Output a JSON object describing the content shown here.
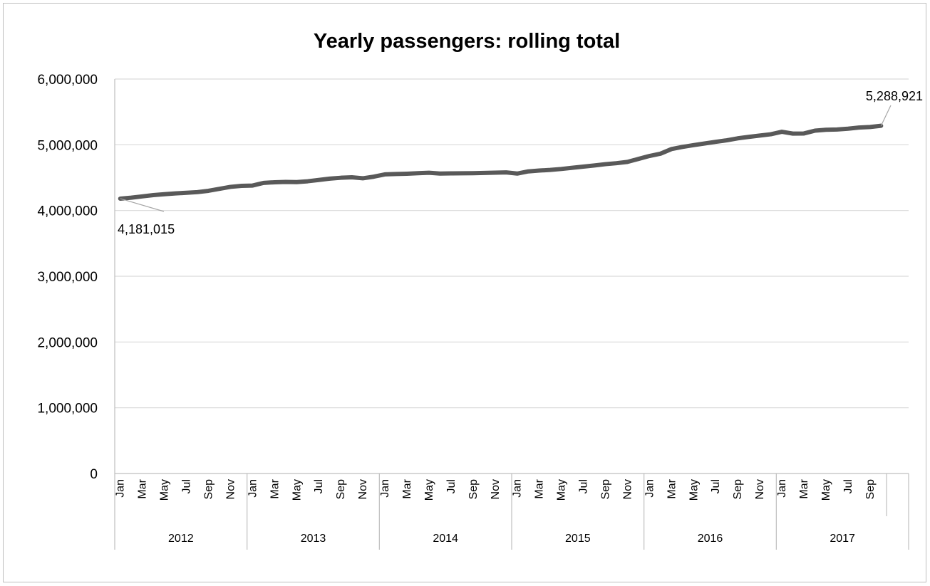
{
  "chart_data": {
    "type": "line",
    "title": "Yearly passengers: rolling total",
    "xlabel": "",
    "ylabel": "",
    "ylim": [
      0,
      6000000
    ],
    "yticks": [
      0,
      1000000,
      2000000,
      3000000,
      4000000,
      5000000,
      6000000
    ],
    "ytick_labels": [
      "0",
      "1,000,000",
      "2,000,000",
      "3,000,000",
      "4,000,000",
      "5,000,000",
      "6,000,000"
    ],
    "grid": true,
    "legend": "none",
    "line_color": "#595959",
    "month_labels_shown": [
      "Jan",
      "Mar",
      "May",
      "Jul",
      "Sep",
      "Nov"
    ],
    "years": [
      "2012",
      "2013",
      "2014",
      "2015",
      "2016",
      "2017"
    ],
    "x": [
      "2012-Jan",
      "2012-Feb",
      "2012-Mar",
      "2012-Apr",
      "2012-May",
      "2012-Jun",
      "2012-Jul",
      "2012-Aug",
      "2012-Sep",
      "2012-Oct",
      "2012-Nov",
      "2012-Dec",
      "2013-Jan",
      "2013-Feb",
      "2013-Mar",
      "2013-Apr",
      "2013-May",
      "2013-Jun",
      "2013-Jul",
      "2013-Aug",
      "2013-Sep",
      "2013-Oct",
      "2013-Nov",
      "2013-Dec",
      "2014-Jan",
      "2014-Feb",
      "2014-Mar",
      "2014-Apr",
      "2014-May",
      "2014-Jun",
      "2014-Jul",
      "2014-Aug",
      "2014-Sep",
      "2014-Oct",
      "2014-Nov",
      "2014-Dec",
      "2015-Jan",
      "2015-Feb",
      "2015-Mar",
      "2015-Apr",
      "2015-May",
      "2015-Jun",
      "2015-Jul",
      "2015-Aug",
      "2015-Sep",
      "2015-Oct",
      "2015-Nov",
      "2015-Dec",
      "2016-Jan",
      "2016-Feb",
      "2016-Mar",
      "2016-Apr",
      "2016-May",
      "2016-Jun",
      "2016-Jul",
      "2016-Aug",
      "2016-Sep",
      "2016-Oct",
      "2016-Nov",
      "2016-Dec",
      "2017-Jan",
      "2017-Feb",
      "2017-Mar",
      "2017-Apr",
      "2017-May",
      "2017-Jun",
      "2017-Jul",
      "2017-Aug",
      "2017-Sep",
      "2017-Oct"
    ],
    "series": [
      {
        "values": [
          4181015,
          4195000,
          4215000,
          4235000,
          4248000,
          4260000,
          4270000,
          4280000,
          4300000,
          4330000,
          4360000,
          4375000,
          4380000,
          4420000,
          4430000,
          4435000,
          4432000,
          4445000,
          4465000,
          4485000,
          4498000,
          4505000,
          4490000,
          4515000,
          4550000,
          4555000,
          4560000,
          4568000,
          4575000,
          4562000,
          4565000,
          4566000,
          4568000,
          4572000,
          4576000,
          4580000,
          4562000,
          4595000,
          4608000,
          4618000,
          4632000,
          4650000,
          4668000,
          4685000,
          4705000,
          4720000,
          4740000,
          4785000,
          4830000,
          4865000,
          4935000,
          4968000,
          4995000,
          5020000,
          5045000,
          5068000,
          5098000,
          5120000,
          5140000,
          5160000,
          5198000,
          5170000,
          5172000,
          5215000,
          5228000,
          5232000,
          5245000,
          5262000,
          5270000,
          5288921
        ]
      }
    ],
    "annotations": [
      {
        "label": "4,181,015",
        "index": 0
      },
      {
        "label": "5,288,921",
        "index": 69
      }
    ]
  }
}
